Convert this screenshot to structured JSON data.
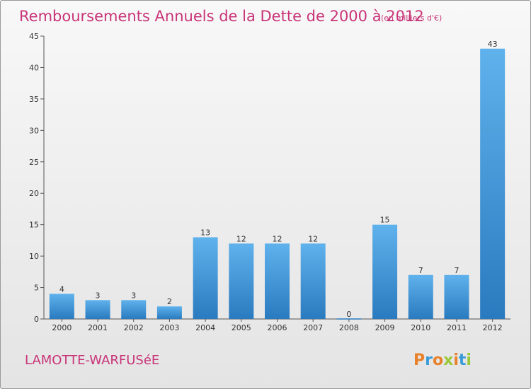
{
  "header": {
    "title": "Remboursements Annuels de la Dette de 2000 à 2012",
    "unit": "(en milliers d'€)"
  },
  "footer": {
    "commune": "LAMOTTE-WARFUSéE",
    "logo": "Proxiti",
    "logo_colors": [
      "#e8812a",
      "#3a9bd9",
      "#e8812a",
      "#9bc83a",
      "#e8812a",
      "#3a9bd9",
      "#9bc83a"
    ]
  },
  "colors": {
    "title": "#c83478",
    "bar_light": "#5fb2ec",
    "bar_dark": "#2a7abf",
    "axis": "#555555",
    "grid": "#cfcfcf"
  },
  "chart_data": {
    "type": "bar",
    "title": "Remboursements Annuels de la Dette de 2000 à 2012",
    "subtitle": "(en milliers d'€)",
    "xlabel": "",
    "ylabel": "",
    "categories": [
      "2000",
      "2001",
      "2002",
      "2003",
      "2004",
      "2005",
      "2006",
      "2007",
      "2008",
      "2009",
      "2010",
      "2011",
      "2012"
    ],
    "values": [
      4,
      3,
      3,
      2,
      13,
      12,
      12,
      12,
      0,
      15,
      7,
      7,
      43
    ],
    "ylim": [
      0,
      45
    ],
    "yticks": [
      0,
      5,
      10,
      15,
      20,
      25,
      30,
      35,
      40,
      45
    ],
    "grid": false,
    "legend": "none"
  }
}
